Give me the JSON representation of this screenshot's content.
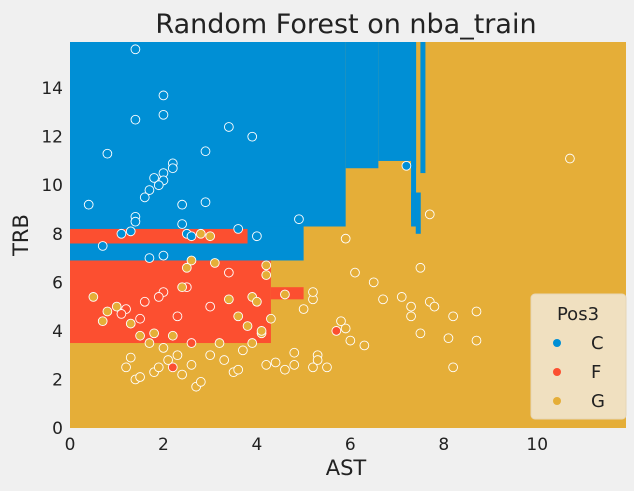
{
  "chart_data": {
    "type": "scatter",
    "title": "Random Forest on nba_train",
    "xlabel": "AST",
    "ylabel": "TRB",
    "xlim": [
      0,
      11.9
    ],
    "ylim": [
      0,
      15.9
    ],
    "xticks": [
      0,
      2,
      4,
      6,
      8,
      10
    ],
    "yticks": [
      0,
      2,
      4,
      6,
      8,
      10,
      12,
      14
    ],
    "grid": false,
    "legend": {
      "title": "Pos3",
      "placement": "lower-right"
    },
    "colors": {
      "C": "#008fd5",
      "F": "#fc4f30",
      "G": "#e5ae38",
      "background": "#f0f0f0",
      "legend_bg": "#f0e0c0"
    },
    "decision_regions": [
      {
        "class": "G",
        "x": [
          0,
          11.9
        ],
        "y": [
          0,
          15.9
        ]
      },
      {
        "class": "C",
        "x": [
          0,
          5.9
        ],
        "y": [
          8.3,
          15.9
        ]
      },
      {
        "class": "C",
        "x": [
          0,
          5.0
        ],
        "y": [
          6.9,
          8.3
        ]
      },
      {
        "class": "C",
        "x": [
          5.9,
          6.6
        ],
        "y": [
          10.7,
          15.9
        ]
      },
      {
        "class": "C",
        "x": [
          6.6,
          7.3
        ],
        "y": [
          11.0,
          15.9
        ]
      },
      {
        "class": "C",
        "x": [
          7.3,
          7.3
        ],
        "y": [
          10.7,
          15.9
        ]
      },
      {
        "class": "C",
        "x": [
          7.3,
          7.3
        ],
        "y": [
          8.5,
          15.9
        ]
      },
      {
        "class": "C",
        "x": [
          7.3,
          7.4
        ],
        "y": [
          8.3,
          9.7
        ]
      },
      {
        "class": "C",
        "x": [
          7.4,
          7.5
        ],
        "y": [
          8.0,
          9.7
        ]
      },
      {
        "class": "C",
        "x": [
          7.5,
          7.5
        ],
        "y": [
          10.5,
          15.9
        ]
      },
      {
        "class": "F",
        "x": [
          0,
          4.3
        ],
        "y": [
          3.5,
          6.9
        ]
      },
      {
        "class": "F",
        "x": [
          0,
          3.8
        ],
        "y": [
          7.6,
          8.2
        ]
      },
      {
        "class": "F",
        "x": [
          4.3,
          5.0
        ],
        "y": [
          5.3,
          5.8
        ]
      }
    ],
    "series": [
      {
        "name": "C",
        "points": [
          [
            1.4,
            15.6
          ],
          [
            2.0,
            13.7
          ],
          [
            1.4,
            12.7
          ],
          [
            2.0,
            12.9
          ],
          [
            3.4,
            12.4
          ],
          [
            3.9,
            12.0
          ],
          [
            0.8,
            11.3
          ],
          [
            2.9,
            11.4
          ],
          [
            2.0,
            10.5
          ],
          [
            1.8,
            10.3
          ],
          [
            2.0,
            10.2
          ],
          [
            2.2,
            10.9
          ],
          [
            2.2,
            10.7
          ],
          [
            1.7,
            9.8
          ],
          [
            1.6,
            9.5
          ],
          [
            1.9,
            10.0
          ],
          [
            0.4,
            9.2
          ],
          [
            2.4,
            9.2
          ],
          [
            2.9,
            9.3
          ],
          [
            1.4,
            8.7
          ],
          [
            1.4,
            8.5
          ],
          [
            1.3,
            8.1
          ],
          [
            0.7,
            7.5
          ],
          [
            1.1,
            8.0
          ],
          [
            2.5,
            8.0
          ],
          [
            2.4,
            8.4
          ],
          [
            1.7,
            7.0
          ],
          [
            2.6,
            7.9
          ],
          [
            2.0,
            7.1
          ],
          [
            3.6,
            8.2
          ],
          [
            4.0,
            7.9
          ],
          [
            4.9,
            8.6
          ],
          [
            7.2,
            10.8
          ]
        ]
      },
      {
        "name": "F",
        "points": [
          [
            2.0,
            5.6
          ],
          [
            1.6,
            5.2
          ],
          [
            2.5,
            5.8
          ],
          [
            3.4,
            6.4
          ],
          [
            1.9,
            5.4
          ],
          [
            1.2,
            4.9
          ],
          [
            2.3,
            4.6
          ],
          [
            3.0,
            5.0
          ],
          [
            5.7,
            4.0
          ],
          [
            2.2,
            2.5
          ],
          [
            1.5,
            4.5
          ],
          [
            1.1,
            4.7
          ],
          [
            2.6,
            3.5
          ]
        ]
      },
      {
        "name": "G",
        "points": [
          [
            0.5,
            5.4
          ],
          [
            0.7,
            4.4
          ],
          [
            0.8,
            4.8
          ],
          [
            1.0,
            5.0
          ],
          [
            1.3,
            4.3
          ],
          [
            1.5,
            3.8
          ],
          [
            1.7,
            3.5
          ],
          [
            1.8,
            3.9
          ],
          [
            2.0,
            3.3
          ],
          [
            2.1,
            2.8
          ],
          [
            2.3,
            3.0
          ],
          [
            2.4,
            2.2
          ],
          [
            2.2,
            3.8
          ],
          [
            1.4,
            2.0
          ],
          [
            1.5,
            2.1
          ],
          [
            1.8,
            2.3
          ],
          [
            1.9,
            2.5
          ],
          [
            1.2,
            2.5
          ],
          [
            1.3,
            2.9
          ],
          [
            2.7,
            1.7
          ],
          [
            2.8,
            1.9
          ],
          [
            2.6,
            2.6
          ],
          [
            3.0,
            3.0
          ],
          [
            3.2,
            3.5
          ],
          [
            3.3,
            2.8
          ],
          [
            3.5,
            2.3
          ],
          [
            3.6,
            2.4
          ],
          [
            3.7,
            3.2
          ],
          [
            3.9,
            3.5
          ],
          [
            4.1,
            3.9
          ],
          [
            4.2,
            2.6
          ],
          [
            4.4,
            2.7
          ],
          [
            4.6,
            2.4
          ],
          [
            4.8,
            3.1
          ],
          [
            4.8,
            2.6
          ],
          [
            5.2,
            2.5
          ],
          [
            5.3,
            3.0
          ],
          [
            5.3,
            2.8
          ],
          [
            5.5,
            2.5
          ],
          [
            5.8,
            4.4
          ],
          [
            5.9,
            4.1
          ],
          [
            6.0,
            3.6
          ],
          [
            6.3,
            3.4
          ],
          [
            5.0,
            4.9
          ],
          [
            5.2,
            5.3
          ],
          [
            5.2,
            5.6
          ],
          [
            4.6,
            5.5
          ],
          [
            4.3,
            4.5
          ],
          [
            4.1,
            4.0
          ],
          [
            3.8,
            4.2
          ],
          [
            3.6,
            4.6
          ],
          [
            3.4,
            5.3
          ],
          [
            3.9,
            5.4
          ],
          [
            4.0,
            5.2
          ],
          [
            4.2,
            6.3
          ],
          [
            4.2,
            6.7
          ],
          [
            5.9,
            7.8
          ],
          [
            6.1,
            6.4
          ],
          [
            6.5,
            6.0
          ],
          [
            6.7,
            5.3
          ],
          [
            7.1,
            5.4
          ],
          [
            7.5,
            6.6
          ],
          [
            7.7,
            5.2
          ],
          [
            7.8,
            5.0
          ],
          [
            7.3,
            4.6
          ],
          [
            7.3,
            5.0
          ],
          [
            7.5,
            3.9
          ],
          [
            8.2,
            4.6
          ],
          [
            8.7,
            4.8
          ],
          [
            8.1,
            3.7
          ],
          [
            8.7,
            3.6
          ],
          [
            8.2,
            2.5
          ],
          [
            7.7,
            8.8
          ],
          [
            10.7,
            11.1
          ],
          [
            3.1,
            6.8
          ],
          [
            3.0,
            7.9
          ],
          [
            2.8,
            8.0
          ],
          [
            2.6,
            6.9
          ],
          [
            2.5,
            6.6
          ],
          [
            2.4,
            5.8
          ]
        ]
      }
    ]
  }
}
